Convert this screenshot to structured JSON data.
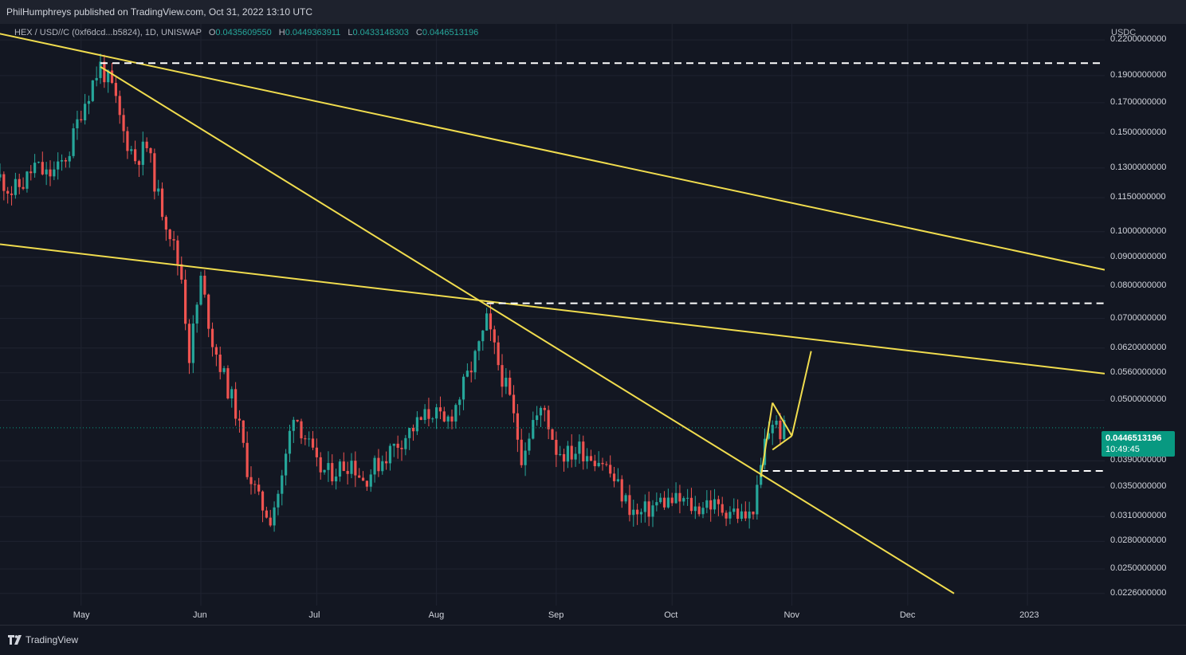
{
  "header": {
    "publisher": "PhilHumphreys published on TradingView.com, Oct 31, 2022 13:10 UTC"
  },
  "legend": {
    "symbol": "HEX / USD//C (0xf6dcd...b5824), 1D, UNISWAP",
    "o_label": "O",
    "o": "0.0435609550",
    "h_label": "H",
    "h": "0.0449363911",
    "l_label": "L",
    "l": "0.0433148303",
    "c_label": "C",
    "c": "0.0446513196"
  },
  "price_axis": {
    "currency": "USDC",
    "labels": [
      "0.2200000000",
      "0.1900000000",
      "0.1700000000",
      "0.1500000000",
      "0.1300000000",
      "0.1150000000",
      "0.1000000000",
      "0.0900000000",
      "0.0800000000",
      "0.0700000000",
      "0.0620000000",
      "0.0560000000",
      "0.0500000000",
      "0.0390000000",
      "0.0350000000",
      "0.0310000000",
      "0.0280000000",
      "0.0250000000",
      "0.0226000000"
    ],
    "last_price": "0.0446513196",
    "countdown": "10:49:45"
  },
  "time_axis": {
    "labels": [
      "May",
      "Jun",
      "Jul",
      "Aug",
      "Sep",
      "Oct",
      "Nov",
      "Dec",
      "2023"
    ]
  },
  "footer": {
    "brand": "TradingView"
  },
  "colors": {
    "up": "#26a69a",
    "down": "#ef5350",
    "drawing": "#f0dc4e",
    "background": "#131722",
    "last_price": "#089981"
  },
  "chart_data": {
    "type": "candlestick",
    "scale": "log",
    "ylim": [
      0.0215,
      0.235
    ],
    "x_unit": "date",
    "xlim": [
      "2022-04-10",
      "2023-01-21"
    ],
    "grid": true,
    "series_close": [
      [
        "2022-04-10",
        0.125
      ],
      [
        "2022-04-13",
        0.118
      ],
      [
        "2022-04-16",
        0.122
      ],
      [
        "2022-04-19",
        0.131
      ],
      [
        "2022-04-22",
        0.126
      ],
      [
        "2022-04-25",
        0.129
      ],
      [
        "2022-04-28",
        0.14
      ],
      [
        "2022-05-01",
        0.165
      ],
      [
        "2022-05-04",
        0.185
      ],
      [
        "2022-05-06",
        0.198
      ],
      [
        "2022-05-09",
        0.18
      ],
      [
        "2022-05-12",
        0.15
      ],
      [
        "2022-05-15",
        0.135
      ],
      [
        "2022-05-18",
        0.142
      ],
      [
        "2022-05-21",
        0.115
      ],
      [
        "2022-05-24",
        0.1
      ],
      [
        "2022-05-27",
        0.083
      ],
      [
        "2022-05-29",
        0.06
      ],
      [
        "2022-06-01",
        0.082
      ],
      [
        "2022-06-04",
        0.064
      ],
      [
        "2022-06-07",
        0.055
      ],
      [
        "2022-06-10",
        0.048
      ],
      [
        "2022-06-13",
        0.038
      ],
      [
        "2022-06-16",
        0.033
      ],
      [
        "2022-06-19",
        0.031
      ],
      [
        "2022-06-22",
        0.036
      ],
      [
        "2022-06-25",
        0.048
      ],
      [
        "2022-06-28",
        0.043
      ],
      [
        "2022-07-01",
        0.038
      ],
      [
        "2022-07-04",
        0.037
      ],
      [
        "2022-07-07",
        0.038
      ],
      [
        "2022-07-10",
        0.039
      ],
      [
        "2022-07-13",
        0.036
      ],
      [
        "2022-07-16",
        0.038
      ],
      [
        "2022-07-19",
        0.04
      ],
      [
        "2022-07-22",
        0.042
      ],
      [
        "2022-07-25",
        0.044
      ],
      [
        "2022-07-28",
        0.046
      ],
      [
        "2022-07-31",
        0.048
      ],
      [
        "2022-08-03",
        0.045
      ],
      [
        "2022-08-06",
        0.049
      ],
      [
        "2022-08-09",
        0.055
      ],
      [
        "2022-08-12",
        0.062
      ],
      [
        "2022-08-14",
        0.069
      ],
      [
        "2022-08-17",
        0.058
      ],
      [
        "2022-08-20",
        0.05
      ],
      [
        "2022-08-23",
        0.04
      ],
      [
        "2022-08-26",
        0.046
      ],
      [
        "2022-08-29",
        0.048
      ],
      [
        "2022-09-01",
        0.041
      ],
      [
        "2022-09-04",
        0.04
      ],
      [
        "2022-09-07",
        0.041
      ],
      [
        "2022-09-10",
        0.04
      ],
      [
        "2022-09-13",
        0.039
      ],
      [
        "2022-09-16",
        0.036
      ],
      [
        "2022-09-19",
        0.033
      ],
      [
        "2022-09-22",
        0.031
      ],
      [
        "2022-09-25",
        0.032
      ],
      [
        "2022-09-28",
        0.033
      ],
      [
        "2022-10-01",
        0.033
      ],
      [
        "2022-10-04",
        0.033
      ],
      [
        "2022-10-07",
        0.032
      ],
      [
        "2022-10-10",
        0.033
      ],
      [
        "2022-10-13",
        0.032
      ],
      [
        "2022-10-16",
        0.032
      ],
      [
        "2022-10-19",
        0.031
      ],
      [
        "2022-10-21",
        0.031
      ],
      [
        "2022-10-23",
        0.034
      ],
      [
        "2022-10-25",
        0.042
      ],
      [
        "2022-10-27",
        0.046
      ],
      [
        "2022-10-29",
        0.044
      ],
      [
        "2022-10-31",
        0.0447
      ]
    ]
  }
}
